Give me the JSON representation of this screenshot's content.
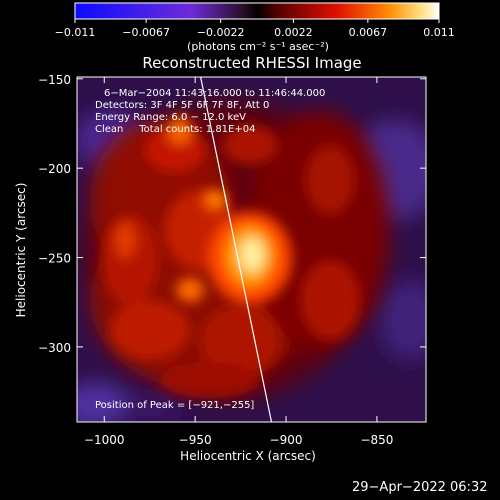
{
  "chart_data": {
    "type": "heatmap",
    "title": "Reconstructed RHESSI Image",
    "xlabel": "Heliocentric X (arcsec)",
    "ylabel": "Heliocentric Y (arcsec)",
    "xlim": [
      -1015,
      -823
    ],
    "ylim": [
      -342,
      -149
    ],
    "xticks": [
      -1000,
      -950,
      -900,
      -850
    ],
    "xtick_labels": [
      "−1000",
      "−950",
      "−900",
      "−850"
    ],
    "yticks": [
      -150,
      -200,
      -250,
      -300
    ],
    "ytick_labels": [
      "−150",
      "−200",
      "−250",
      "−300"
    ],
    "colorbar": {
      "range": [
        -0.011,
        0.011
      ],
      "ticks": [
        -0.011,
        -0.0067,
        -0.0022,
        0.0022,
        0.0067,
        0.011
      ],
      "tick_labels": [
        "−0.011",
        "−0.0067",
        "−0.0022",
        "0.0022",
        "0.0067",
        "0.011"
      ],
      "unit_label": "(photons cm⁻² s⁻¹ asec⁻²)"
    },
    "info_lines": [
      "6−Mar−2004 11:43:16.000 to 11:46:44.000",
      "Detectors: 3F 4F 5F 6F 7F 8F, Att 0",
      "Energy Range: 6.0 − 12.0 keV",
      "Clean     Total counts: 1.81E+04"
    ],
    "peak_label": "Position of Peak = [−921,−255]",
    "peak": [
      -921,
      -255
    ],
    "limb_line": [
      [
        -947,
        -149
      ],
      [
        -908,
        -342
      ]
    ],
    "colors": {
      "limb": "#ffffff",
      "frame": "#ffffff"
    }
  },
  "timestamp": "29−Apr−2022 06:32"
}
